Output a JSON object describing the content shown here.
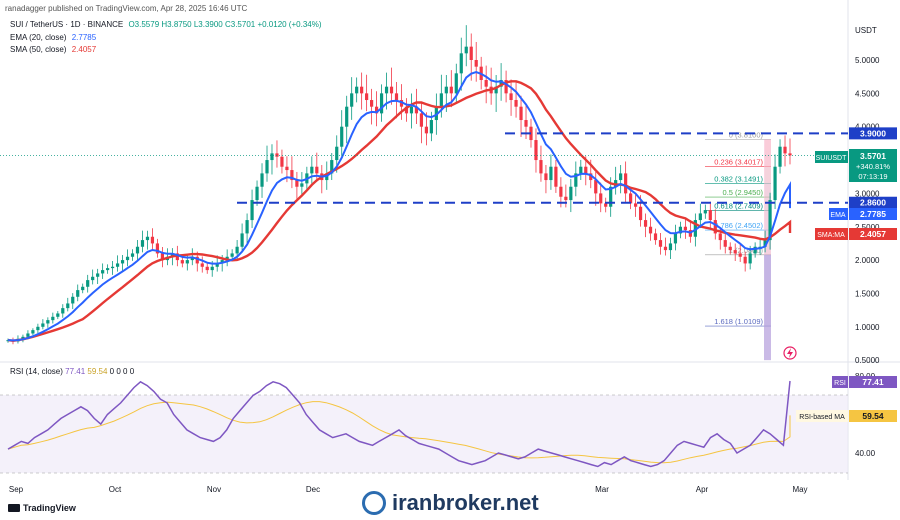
{
  "header": {
    "publisher": "ranadagger published on TradingView.com, Apr 28, 2025 16:46 UTC"
  },
  "legend": {
    "title": "SUI / TetherUS · 1D · BINANCE",
    "ohlc": "O3.5579  H3.8750  L3.3900  C3.5701  +0.0120 (+0.34%)",
    "ema_label": "EMA (20, close)",
    "ema_value": "2.7785",
    "sma_label": "SMA (50, close)",
    "sma_value": "2.4057",
    "rsi_label": "RSI (14, close)",
    "rsi_value": "77.41",
    "rsi_ma_value": "59.54",
    "rsi_extra": "0  0  0  0"
  },
  "axis": {
    "currency": "USDT",
    "price_ticks": [
      "5.0000",
      "4.5000",
      "4.0000",
      "3.5000",
      "3.0000",
      "2.5000",
      "2.0000",
      "1.5000",
      "1.0000",
      "0.5000"
    ],
    "rsi_ticks": [
      "80.00",
      "40.00"
    ],
    "months": [
      "Sep",
      "Oct",
      "Nov",
      "Dec",
      "Mar",
      "Apr",
      "May"
    ]
  },
  "badges": {
    "level_high": "3.9000",
    "price_symbol": "SUIUSDT",
    "price": "3.5701",
    "change": "+340.81%",
    "countdown": "07:13:19",
    "level_low": "2.8600",
    "ema_tag": "EMA",
    "ema": "2.7785",
    "sma_tag": "SMA:MA",
    "sma": "2.4057",
    "rsi_tag": "RSI",
    "rsi": "77.41",
    "rsi_ma_tag": "RSI-based MA",
    "rsi_ma": "59.54"
  },
  "fib_labels": [
    "0 (3.8100)",
    "0.236 (3.4017)",
    "0.382 (3.1491)",
    "0.5 (2.9450)",
    "0.618 (2.7409)",
    "0.786 (2.4502)",
    "1 (2.0800)",
    "1.618 (1.0109)"
  ],
  "footer": {
    "brand": "TradingView",
    "watermark": "iranbroker.net"
  },
  "colors": {
    "up": "#089981",
    "down": "#f23645",
    "ema": "#2962ff",
    "sma": "#e53935",
    "rsi": "#7e57c2",
    "rsi_ma": "#f5c542",
    "level": "#1e3fc7"
  },
  "chart_data": {
    "type": "candlestick",
    "title": "SUI / TetherUS",
    "price_axis_range": [
      0.5,
      5.4
    ],
    "rsi_axis_range": [
      25,
      85
    ],
    "key_levels": [
      3.9,
      2.86
    ],
    "fibonacci": [
      {
        "ratio": 0,
        "price": 3.81
      },
      {
        "ratio": 0.236,
        "price": 3.4017
      },
      {
        "ratio": 0.382,
        "price": 3.1491
      },
      {
        "ratio": 0.5,
        "price": 2.945
      },
      {
        "ratio": 0.618,
        "price": 2.7409
      },
      {
        "ratio": 0.786,
        "price": 2.4502
      },
      {
        "ratio": 1,
        "price": 2.08
      },
      {
        "ratio": 1.618,
        "price": 1.0109
      }
    ],
    "close_path": [
      0.8,
      0.78,
      0.82,
      0.85,
      0.9,
      0.95,
      1.0,
      1.05,
      1.1,
      1.15,
      1.2,
      1.28,
      1.35,
      1.45,
      1.55,
      1.6,
      1.7,
      1.75,
      1.8,
      1.85,
      1.88,
      1.9,
      1.95,
      2.0,
      2.05,
      2.1,
      2.2,
      2.3,
      2.35,
      2.25,
      2.1,
      2.0,
      2.05,
      2.1,
      2.0,
      1.95,
      2.0,
      2.05,
      1.95,
      1.9,
      1.85,
      1.9,
      1.95,
      2.0,
      2.05,
      2.1,
      2.2,
      2.4,
      2.6,
      2.9,
      3.1,
      3.3,
      3.5,
      3.6,
      3.55,
      3.4,
      3.35,
      3.2,
      3.1,
      3.15,
      3.3,
      3.4,
      3.3,
      3.2,
      3.3,
      3.5,
      3.7,
      4.0,
      4.3,
      4.5,
      4.6,
      4.5,
      4.4,
      4.3,
      4.2,
      4.5,
      4.6,
      4.5,
      4.4,
      4.3,
      4.2,
      4.3,
      4.2,
      4.0,
      3.9,
      4.1,
      4.3,
      4.5,
      4.6,
      4.5,
      4.8,
      5.1,
      5.2,
      5.0,
      4.9,
      4.7,
      4.6,
      4.5,
      4.6,
      4.7,
      4.5,
      4.4,
      4.3,
      4.1,
      4.0,
      3.8,
      3.5,
      3.3,
      3.2,
      3.4,
      3.1,
      2.95,
      2.9,
      3.1,
      3.3,
      3.4,
      3.3,
      3.2,
      3.0,
      2.85,
      2.8,
      3.1,
      3.2,
      3.3,
      3.0,
      2.85,
      2.8,
      2.6,
      2.5,
      2.4,
      2.3,
      2.2,
      2.15,
      2.25,
      2.4,
      2.5,
      2.45,
      2.35,
      2.6,
      2.7,
      2.75,
      2.6,
      2.4,
      2.3,
      2.2,
      2.15,
      2.1,
      2.05,
      1.95,
      2.1,
      2.2,
      2.2,
      2.3,
      2.9,
      3.4,
      3.7,
      3.6,
      3.57
    ],
    "rsi_path": [
      42,
      44,
      46,
      45,
      48,
      50,
      52,
      55,
      58,
      60,
      62,
      64,
      62,
      58,
      55,
      60,
      63,
      66,
      70,
      74,
      77,
      75,
      72,
      68,
      66,
      60,
      56,
      52,
      50,
      48,
      47,
      46,
      48,
      52,
      58,
      62,
      66,
      70,
      72,
      75,
      77,
      76,
      74,
      70,
      66,
      60,
      56,
      52,
      50,
      48,
      49,
      50,
      48,
      46,
      45,
      44,
      46,
      48,
      50,
      52,
      49,
      47,
      45,
      44,
      43,
      42,
      40,
      38,
      36,
      35,
      34,
      35,
      36,
      38,
      40,
      39,
      38,
      37,
      38,
      40,
      42,
      41,
      40,
      39,
      38,
      37,
      36,
      35,
      34,
      33,
      35,
      34,
      36,
      38,
      36,
      35,
      34,
      33,
      34,
      36,
      40,
      44,
      46,
      45,
      44,
      43,
      48,
      50,
      47,
      45,
      40,
      42,
      44,
      48,
      52,
      50,
      47,
      44,
      77.41
    ]
  }
}
